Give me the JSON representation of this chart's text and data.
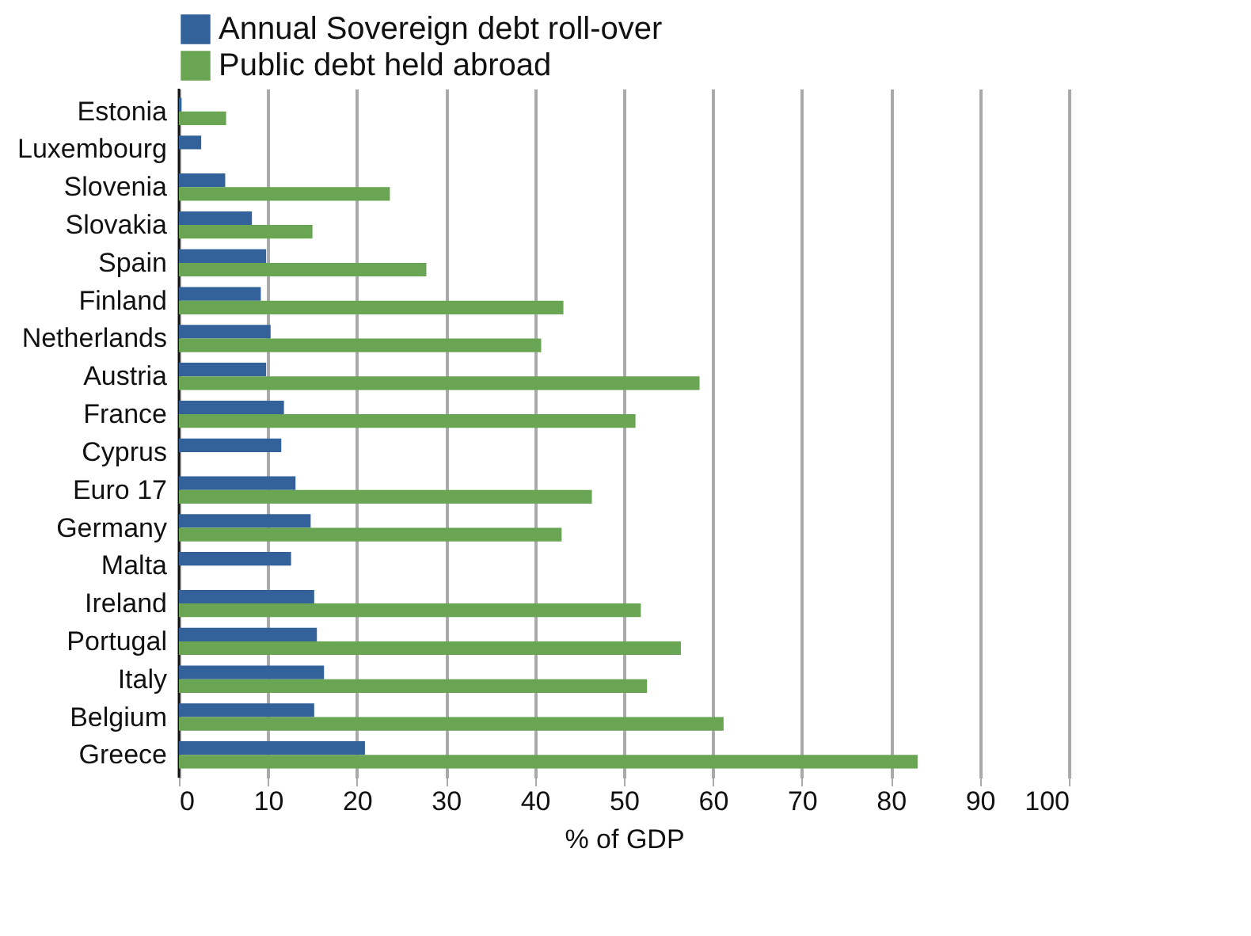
{
  "chart_data": {
    "type": "bar",
    "orientation": "horizontal",
    "xlabel": "% of GDP",
    "categories": [
      "Estonia",
      "Luxembourg",
      "Slovenia",
      "Slovakia",
      "Spain",
      "Finland",
      "Netherlands",
      "Austria",
      "France",
      "Cyprus",
      "Euro 17",
      "Germany",
      "Malta",
      "Ireland",
      "Portugal",
      "Italy",
      "Belgium",
      "Greece"
    ],
    "series": [
      {
        "name": "Annual Sovereign debt roll-over",
        "color": "#33629b",
        "values": [
          0.3,
          2.5,
          5.2,
          8.2,
          9.8,
          9.2,
          10.3,
          9.8,
          11.8,
          11.5,
          13.1,
          14.8,
          12.6,
          15.2,
          15.5,
          16.3,
          15.2,
          20.9
        ]
      },
      {
        "name": "Public debt held abroad",
        "color": "#6aa553",
        "values": [
          5.3,
          null,
          23.7,
          15,
          27.8,
          43.2,
          40.7,
          58.5,
          51.3,
          null,
          46.4,
          43,
          null,
          51.9,
          56.4,
          52.6,
          61.2,
          83
        ]
      }
    ],
    "xlim": [
      0,
      100
    ],
    "xticks": [
      0,
      10,
      20,
      30,
      40,
      50,
      60,
      70,
      80,
      90,
      100
    ],
    "grid": "x",
    "legend": "top"
  }
}
